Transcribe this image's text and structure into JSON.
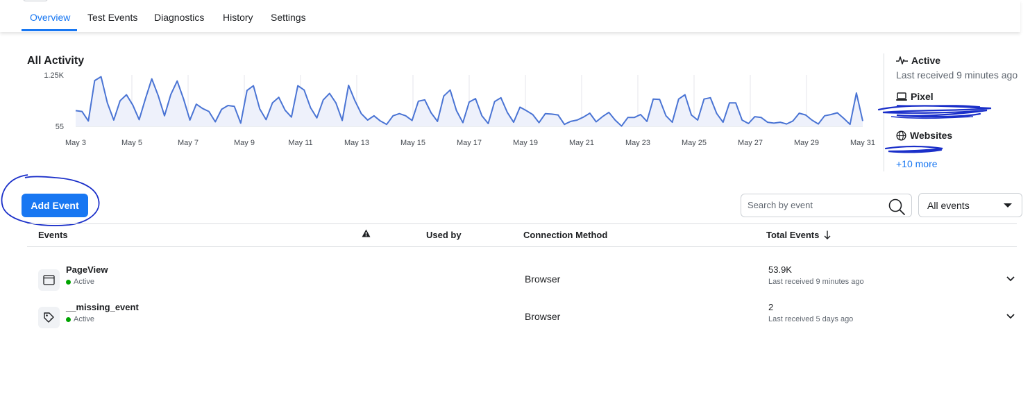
{
  "tabs": [
    {
      "label": "Overview",
      "active": true
    },
    {
      "label": "Test Events",
      "active": false
    },
    {
      "label": "Diagnostics",
      "active": false
    },
    {
      "label": "History",
      "active": false
    },
    {
      "label": "Settings",
      "active": false
    }
  ],
  "chart": {
    "title": "All Activity"
  },
  "chart_data": {
    "type": "area",
    "title": "All Activity",
    "xlabel": "",
    "ylabel": "",
    "y_tick_labels": [
      "1.25K",
      "55"
    ],
    "ylim": [
      55,
      1250
    ],
    "x_tick_labels": [
      "May 3",
      "May 5",
      "May 7",
      "May 9",
      "May 11",
      "May 13",
      "May 15",
      "May 17",
      "May 19",
      "May 21",
      "May 23",
      "May 25",
      "May 27",
      "May 29",
      "May 31"
    ],
    "x_range": [
      "May 3",
      "May 31"
    ],
    "grid": "vertical",
    "line_color": "#4a74d4",
    "fill_color": "#eef1fb",
    "series": [
      {
        "values": [
          420,
          400,
          180,
          1120,
          1210,
          600,
          200,
          650,
          790,
          550,
          210,
          700,
          1160,
          770,
          300,
          800,
          1110,
          690,
          200,
          570,
          470,
          400,
          160,
          450,
          540,
          520,
          130,
          890,
          1000,
          460,
          210,
          600,
          730,
          430,
          270,
          1000,
          900,
          490,
          250,
          670,
          820,
          600,
          190,
          1010,
          650,
          350,
          200,
          300,
          180,
          100,
          300,
          350,
          300,
          190,
          640,
          670,
          370,
          170,
          760,
          900,
          420,
          140,
          620,
          700,
          300,
          120,
          630,
          720,
          380,
          150,
          500,
          420,
          330,
          140,
          350,
          340,
          320,
          100,
          170,
          200,
          270,
          360,
          160,
          280,
          380,
          200,
          60,
          260,
          260,
          330,
          170,
          690,
          680,
          300,
          150,
          690,
          790,
          320,
          200,
          690,
          720,
          350,
          150,
          600,
          600,
          200,
          120,
          280,
          260,
          150,
          130,
          150,
          110,
          180,
          360,
          320,
          200,
          110,
          300,
          330,
          370,
          240,
          100,
          830,
          180
        ]
      }
    ]
  },
  "status_panel": {
    "active_label": "Active",
    "last_received": "Last received 9 minutes ago",
    "pixel_label": "Pixel",
    "websites_label": "Websites",
    "more_link": "+10 more"
  },
  "toolbar": {
    "add_event_label": "Add Event",
    "search_placeholder": "Search by event",
    "filter_value": "All events"
  },
  "table": {
    "columns": {
      "events": "Events",
      "used_by": "Used by",
      "connection_method": "Connection Method",
      "total_events": "Total Events"
    },
    "rows": [
      {
        "name": "PageView",
        "status": "Active",
        "connection": "Browser",
        "total": "53.9K",
        "last_received": "Last received 9 minutes ago",
        "icon": "browser-window-icon"
      },
      {
        "name": "__missing_event",
        "status": "Active",
        "connection": "Browser",
        "total": "2",
        "last_received": "Last received 5 days ago",
        "icon": "tag-icon"
      }
    ]
  },
  "colors": {
    "accent": "#1877f2",
    "active_dot": "#00a400",
    "annotation_ink": "#1a2fc9"
  }
}
